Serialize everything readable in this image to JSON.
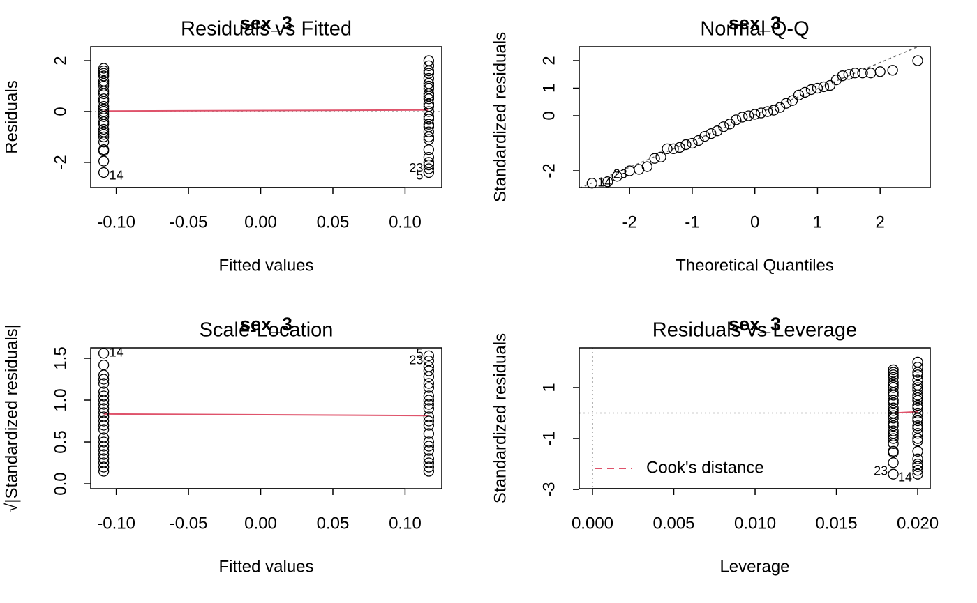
{
  "chart_data": [
    {
      "type": "scatter",
      "subtitle": "sex_3",
      "title": "Residuals vs Fitted",
      "xlabel": "Fitted values",
      "ylabel": "Residuals",
      "xlim": [
        -0.1177,
        0.1254
      ],
      "ylim": [
        -2.99,
        2.55
      ],
      "xticks": [
        {
          "value": -0.1,
          "label": "-0.10"
        },
        {
          "value": -0.05,
          "label": "-0.05"
        },
        {
          "value": 0,
          "label": "0.00"
        },
        {
          "value": 0.05,
          "label": "0.05"
        },
        {
          "value": 0.1,
          "label": "0.10"
        }
      ],
      "yticks": [
        -2,
        0,
        2
      ],
      "hline": 0,
      "series": [
        {
          "color": "#000000",
          "x": -0.1087,
          "values": [
            1.7,
            1.6,
            1.5,
            1.4,
            1.2,
            1.1,
            1.0,
            0.8,
            0.7,
            0.5,
            0.4,
            0.2,
            0.1,
            0.0,
            -0.1,
            -0.2,
            -0.4,
            -0.5,
            -0.7,
            -0.8,
            -0.9,
            -1.0,
            -1.2,
            -1.5,
            -1.55,
            -1.95,
            -2.4
          ]
        },
        {
          "color": "#000000",
          "x": 0.1164,
          "values": [
            2.0,
            1.8,
            1.6,
            1.5,
            1.3,
            1.1,
            1.0,
            0.9,
            0.7,
            0.6,
            0.5,
            0.3,
            0.2,
            0.0,
            -0.2,
            -0.3,
            -0.5,
            -0.6,
            -0.8,
            -1.0,
            -1.1,
            -1.5,
            -1.8,
            -2.0,
            -2.1,
            -2.25,
            -2.4
          ]
        }
      ],
      "smooth": {
        "color": "#DF536B",
        "x": [
          -0.1087,
          0.1164
        ],
        "y": [
          0.02,
          0.06
        ]
      },
      "annotations": [
        {
          "text": "14",
          "x": -0.1087,
          "y": -2.55
        },
        {
          "text": "23",
          "x": 0.1164,
          "y": -2.25
        },
        {
          "text": "5",
          "x": 0.1164,
          "y": -2.55
        }
      ]
    },
    {
      "type": "scatter",
      "subtitle": "sex_3",
      "title": "Normal Q-Q",
      "xlabel": "Theoretical Quantiles",
      "ylabel": "Standardized residuals",
      "xlim": [
        -2.804,
        2.8
      ],
      "ylim": [
        -2.608,
        2.506
      ],
      "xticks": [
        -2,
        -1,
        0,
        1,
        2
      ],
      "yticks": [
        -2,
        0,
        1,
        2
      ],
      "qqline": {
        "x": [
          -2.8,
          2.8
        ],
        "y": [
          -2.63,
          2.69
        ]
      },
      "series": [
        {
          "color": "#000000",
          "x": [
            -2.6,
            -2.35,
            -2.2,
            -2.0,
            -1.85,
            -1.72,
            -1.6,
            -1.5,
            -1.4,
            -1.3,
            -1.2,
            -1.1,
            -1.0,
            -0.9,
            -0.8,
            -0.7,
            -0.6,
            -0.5,
            -0.4,
            -0.3,
            -0.2,
            -0.1,
            0,
            0.1,
            0.2,
            0.3,
            0.4,
            0.5,
            0.6,
            0.7,
            0.8,
            0.9,
            1.0,
            1.1,
            1.2,
            1.3,
            1.4,
            1.5,
            1.6,
            1.72,
            1.85,
            2.0,
            2.2,
            2.6
          ],
          "values": [
            -2.45,
            -2.4,
            -2.2,
            -2.0,
            -1.95,
            -1.85,
            -1.55,
            -1.5,
            -1.2,
            -1.2,
            -1.15,
            -1.05,
            -1.0,
            -0.9,
            -0.75,
            -0.65,
            -0.55,
            -0.4,
            -0.3,
            -0.15,
            -0.05,
            0.0,
            0.05,
            0.1,
            0.15,
            0.2,
            0.3,
            0.45,
            0.55,
            0.75,
            0.85,
            0.95,
            1.0,
            1.05,
            1.1,
            1.3,
            1.45,
            1.5,
            1.55,
            1.55,
            1.55,
            1.6,
            1.65,
            2.0
          ]
        }
      ],
      "annotations": [
        {
          "text": "14",
          "x": -2.6,
          "y": -2.45
        },
        {
          "text": "23",
          "x": -2.35,
          "y": -2.15
        }
      ]
    },
    {
      "type": "scatter",
      "subtitle": "sex_3",
      "title": "Scale-Location",
      "xlabel": "Fitted values",
      "ylabel": "√|Standardized residuals|",
      "xlim": [
        -0.1177,
        0.1254
      ],
      "ylim": [
        -0.058,
        1.625
      ],
      "xticks": [
        {
          "value": -0.1,
          "label": "-0.10"
        },
        {
          "value": -0.05,
          "label": "-0.05"
        },
        {
          "value": 0,
          "label": "0.00"
        },
        {
          "value": 0.05,
          "label": "0.05"
        },
        {
          "value": 0.1,
          "label": "0.10"
        }
      ],
      "yticks": [
        {
          "value": 0,
          "label": "0.0"
        },
        {
          "value": 0.5,
          "label": "0.5"
        },
        {
          "value": 1,
          "label": "1.0"
        },
        {
          "value": 1.5,
          "label": "1.5"
        }
      ],
      "series": [
        {
          "color": "#000000",
          "x": -0.1087,
          "values": [
            1.56,
            1.42,
            1.3,
            1.25,
            1.2,
            1.1,
            1.05,
            1.0,
            0.95,
            0.9,
            0.85,
            0.8,
            0.75,
            0.7,
            0.65,
            0.55,
            0.5,
            0.45,
            0.4,
            0.35,
            0.3,
            0.25,
            0.2,
            0.15
          ]
        },
        {
          "color": "#000000",
          "x": 0.1164,
          "values": [
            1.53,
            1.47,
            1.4,
            1.35,
            1.28,
            1.2,
            1.15,
            1.05,
            1.0,
            0.95,
            0.9,
            0.8,
            0.75,
            0.7,
            0.6,
            0.5,
            0.45,
            0.4,
            0.3,
            0.25,
            0.2,
            0.15
          ]
        }
      ],
      "smooth": {
        "color": "#DF536B",
        "x": [
          -0.1087,
          0.1164
        ],
        "y": [
          0.835,
          0.815
        ]
      },
      "annotations": [
        {
          "text": "14",
          "x": -0.1087,
          "y": 1.56
        },
        {
          "text": "5",
          "x": 0.1164,
          "y": 1.55
        },
        {
          "text": "23",
          "x": 0.1164,
          "y": 1.47
        }
      ]
    },
    {
      "type": "scatter",
      "subtitle": "sex_3",
      "title": "Residuals vs Leverage",
      "xlabel": "Leverage",
      "ylabel": "Standardized residuals",
      "xlim": [
        -0.000815,
        0.02077
      ],
      "ylim": [
        -2.97,
        2.56
      ],
      "xticks": [
        {
          "value": 0,
          "label": "0.000"
        },
        {
          "value": 0.005,
          "label": "0.005"
        },
        {
          "value": 0.01,
          "label": "0.010"
        },
        {
          "value": 0.015,
          "label": "0.015"
        },
        {
          "value": 0.02,
          "label": "0.020"
        }
      ],
      "yticks": [
        -3,
        -1,
        1
      ],
      "hline": 0,
      "vline": 0,
      "series": [
        {
          "color": "#000000",
          "x": 0.0185,
          "values": [
            1.7,
            1.6,
            1.5,
            1.4,
            1.2,
            1.1,
            1.0,
            0.8,
            0.7,
            0.5,
            0.4,
            0.2,
            0.1,
            0.0,
            -0.1,
            -0.2,
            -0.4,
            -0.5,
            -0.7,
            -0.8,
            -0.9,
            -1.0,
            -1.2,
            -1.5,
            -1.55,
            -1.95,
            -2.4
          ]
        },
        {
          "color": "#000000",
          "x": 0.02,
          "values": [
            2.0,
            1.8,
            1.6,
            1.5,
            1.3,
            1.1,
            1.0,
            0.9,
            0.7,
            0.6,
            0.5,
            0.3,
            0.2,
            0.0,
            -0.2,
            -0.3,
            -0.5,
            -0.6,
            -0.8,
            -1.0,
            -1.1,
            -1.5,
            -1.8,
            -2.0,
            -2.1,
            -2.25,
            -2.4
          ]
        }
      ],
      "smooth": {
        "color": "#DF536B",
        "x": [
          0.0185,
          0.02
        ],
        "y": [
          0.0,
          0.05
        ]
      },
      "legend": {
        "label": "Cook's distance",
        "color": "#DF536B",
        "position": "bottom-left"
      },
      "annotations": [
        {
          "text": "23",
          "x": 0.0185,
          "y": -2.3
        },
        {
          "text": "14",
          "x": 0.02,
          "y": -2.55
        }
      ]
    }
  ]
}
